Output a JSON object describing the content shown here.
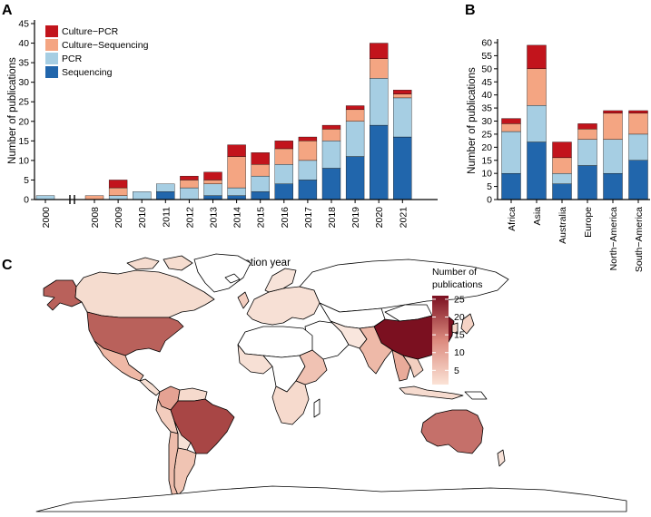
{
  "panels": {
    "a": "A",
    "b": "B",
    "c": "C"
  },
  "colors": {
    "Sequencing": "#2166ac",
    "PCR": "#a6cee3",
    "Culture-Sequencing": "#f4a582",
    "Culture-PCR": "#c2141c",
    "map_low": "#fbe3d6",
    "map_high": "#7b1020",
    "map_border": "#000000",
    "map_nodata": "#ffffff"
  },
  "chart_data": [
    {
      "type": "bar",
      "stacked": true,
      "panel": "A",
      "categories": [
        "2000",
        "2008",
        "2009",
        "2010",
        "2011",
        "2012",
        "2013",
        "2014",
        "2015",
        "2016",
        "2017",
        "2018",
        "2019",
        "2020",
        "2021"
      ],
      "axis_break_after": "2000",
      "series": [
        {
          "name": "Sequencing",
          "values": [
            0,
            0,
            0,
            0,
            2,
            0,
            1,
            1,
            2,
            4,
            5,
            8,
            11,
            19,
            16
          ]
        },
        {
          "name": "PCR",
          "values": [
            1,
            0,
            1,
            2,
            2,
            3,
            3,
            2,
            4,
            5,
            5,
            7,
            9,
            12,
            10
          ]
        },
        {
          "name": "Culture−Sequencing",
          "values": [
            0,
            1,
            2,
            0,
            0,
            2,
            1,
            8,
            3,
            4,
            5,
            3,
            3,
            5,
            1
          ]
        },
        {
          "name": "Culture−PCR",
          "values": [
            0,
            0,
            2,
            0,
            0,
            1,
            2,
            3,
            3,
            2,
            1,
            1,
            1,
            4,
            1
          ]
        }
      ],
      "legend_order": [
        "Culture−PCR",
        "Culture−Sequencing",
        "PCR",
        "Sequencing"
      ],
      "legend_position": "top-left",
      "xlabel": "Publication year",
      "ylabel": "Number of publications",
      "ylim": [
        0,
        45
      ],
      "yticks": [
        "0",
        "5",
        "10",
        "15",
        "20",
        "25",
        "30",
        "35",
        "40",
        "45"
      ],
      "grid": false
    },
    {
      "type": "bar",
      "stacked": true,
      "panel": "B",
      "categories": [
        "Africa",
        "Asia",
        "Australia",
        "Europe",
        "North−America",
        "South−America"
      ],
      "series": [
        {
          "name": "Sequencing",
          "values": [
            10,
            22,
            6,
            13,
            10,
            15
          ]
        },
        {
          "name": "PCR",
          "values": [
            16,
            14,
            4,
            10,
            13,
            10
          ]
        },
        {
          "name": "Culture−Sequencing",
          "values": [
            3,
            14,
            6,
            4,
            10,
            8
          ]
        },
        {
          "name": "Culture−PCR",
          "values": [
            2,
            9,
            6,
            2,
            1,
            1
          ]
        }
      ],
      "xlabel": "",
      "ylabel": "Number of publications",
      "ylim": [
        0,
        60
      ],
      "yticks": [
        "0",
        "5",
        "10",
        "15",
        "20",
        "25",
        "30",
        "35",
        "40",
        "45",
        "50",
        "55",
        "60"
      ],
      "grid": false
    },
    {
      "type": "heatmap",
      "subtype": "choropleth",
      "panel": "C",
      "legend_title": [
        "Number of",
        "publications"
      ],
      "legend_ticks": [
        "5",
        "10",
        "15",
        "20",
        "25"
      ],
      "legend_range": [
        1,
        26
      ],
      "values": {
        "China": 26,
        "Brazil": 21,
        "United States": 17,
        "Australia": 16,
        "Alaska": 17,
        "Colombia": 7,
        "India": 6,
        "Thailand": 8,
        "Kenya": 5,
        "Argentina": 3,
        "Canada": 2,
        "Mexico": 3,
        "Chile": 4,
        "Europe": 2,
        "Russia": 0,
        "South Africa": 3
      }
    }
  ]
}
